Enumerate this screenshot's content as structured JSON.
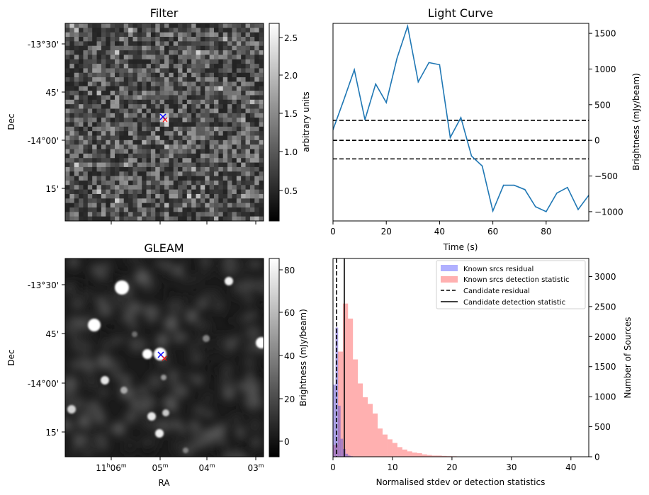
{
  "colors": {
    "line": "#1f77b4",
    "residual_fill": "#b0b0ff",
    "detection_fill": "#ffb0b0",
    "overlap_fill": "#a05ab4",
    "blue_marker": "#0000ff",
    "red_marker": "#ff0000"
  },
  "filter_panel": {
    "title": "Filter",
    "ylabel": "Dec",
    "yticks": [
      "-13°30'",
      "45'",
      "-14°00'",
      "15'"
    ],
    "colorbar": {
      "label": "arbitrary units",
      "ticks": [
        "0.5",
        "1.0",
        "1.5",
        "2.0",
        "2.5"
      ],
      "cmap": "gray"
    }
  },
  "gleam_panel": {
    "title": "GLEAM",
    "ylabel": "Dec",
    "xlabel": "RA",
    "yticks": [
      "-13°30'",
      "45'",
      "-14°00'",
      "15'"
    ],
    "xticks": [
      {
        "h": "11",
        "hu": "h",
        "m": "06",
        "mu": "m"
      },
      {
        "h": "",
        "hu": "",
        "m": "05",
        "mu": "m"
      },
      {
        "h": "",
        "hu": "",
        "m": "04",
        "mu": "m"
      },
      {
        "h": "",
        "hu": "",
        "m": "03",
        "mu": "m"
      }
    ],
    "colorbar": {
      "label": "Brightness (mJy/beam)",
      "ticks": [
        "80",
        "60",
        "40",
        "20",
        "0"
      ],
      "cmap": "gray"
    }
  },
  "chart_data": [
    {
      "type": "line",
      "title": "Light Curve",
      "xlabel": "Time (s)",
      "ylabel": "Brightness (mJy/beam)",
      "xlim": [
        0,
        96
      ],
      "ylim": [
        -1130,
        1640
      ],
      "xticks": [
        "0",
        "20",
        "40",
        "60",
        "80"
      ],
      "yticks": [
        "1500",
        "1000",
        "500",
        "0",
        "-500",
        "-1000"
      ],
      "x": [
        0,
        4,
        8,
        12,
        16,
        20,
        24,
        28,
        32,
        36,
        40,
        44,
        48,
        52,
        56,
        60,
        64,
        68,
        72,
        76,
        80,
        84,
        88,
        92,
        96
      ],
      "y": [
        150,
        560,
        990,
        290,
        790,
        530,
        1150,
        1600,
        820,
        1090,
        1060,
        40,
        320,
        -220,
        -360,
        -990,
        -630,
        -630,
        -690,
        -930,
        -1000,
        -740,
        -660,
        -970,
        -770
      ],
      "hlines": [
        280,
        0,
        -260
      ]
    },
    {
      "type": "bar",
      "xlabel": "Normalised stdev or detection statistics",
      "ylabel": "Number of Sources",
      "xlim": [
        0,
        43
      ],
      "ylim": [
        0,
        3300
      ],
      "xticks": [
        "0",
        "10",
        "20",
        "30",
        "40"
      ],
      "yticks": [
        "3000",
        "2500",
        "2000",
        "1500",
        "1000",
        "500",
        "0"
      ],
      "bin_width": 0.83,
      "series": [
        {
          "name": "Known srcs residual",
          "values": [
            1200,
            2150,
            850,
            300,
            130,
            50,
            20,
            10
          ]
        },
        {
          "name": "Known srcs detection statistic",
          "values": [
            200,
            1750,
            2550,
            2300,
            1620,
            1220,
            990,
            880,
            720,
            470,
            370,
            290,
            230,
            160,
            120,
            90,
            70,
            60,
            40,
            30,
            20,
            20,
            15,
            10,
            8,
            5,
            5,
            3,
            3,
            2,
            2,
            2,
            2,
            1,
            1,
            1,
            1,
            1,
            1,
            1
          ]
        }
      ],
      "vlines": [
        {
          "name": "Candidate residual",
          "x": 0.6
        },
        {
          "name": "Candidate detection statistic",
          "x": 1.9
        }
      ],
      "legend": "top-right"
    }
  ]
}
